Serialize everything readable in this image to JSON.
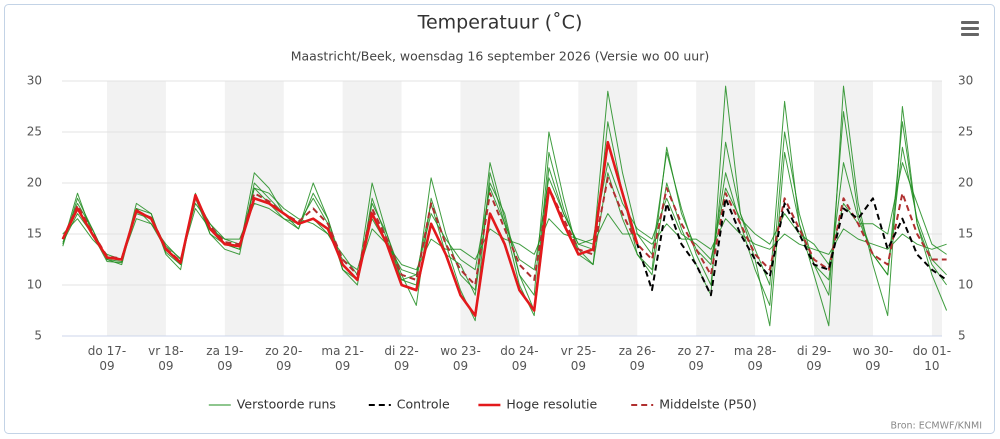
{
  "chart_data": {
    "type": "line",
    "title": "Temperatuur (˚C)",
    "subtitle": "Maastricht/Beek, woensdag 16 september 2026 (Versie wo 00 uur)",
    "credits": "Bron: ECMWF/KNMI",
    "categories": [
      null,
      null,
      null,
      "do 17-09",
      null,
      null,
      null,
      "vr 18-09",
      null,
      null,
      null,
      "za 19-09",
      null,
      null,
      null,
      "zo 20-09",
      null,
      null,
      null,
      "ma 21-09",
      null,
      null,
      null,
      "di 22-09",
      null,
      null,
      null,
      "wo 23-09",
      null,
      null,
      null,
      "do 24-09",
      null,
      null,
      null,
      "vr 25-09",
      null,
      null,
      null,
      "za 26-09",
      null,
      null,
      null,
      "zo 27-09",
      null,
      null,
      null,
      "ma 28-09",
      null,
      null,
      null,
      "di 29-09",
      null,
      null,
      null,
      "wo 30-09",
      null,
      null,
      null,
      "do 01-10",
      null
    ],
    "ylim": [
      5,
      30
    ],
    "yticks": [
      5,
      10,
      15,
      20,
      25,
      30
    ],
    "y2lim": [
      5,
      30
    ],
    "y2ticks": [
      5,
      10,
      15,
      20,
      25,
      30
    ],
    "grid": true,
    "legend": "bottom",
    "series": [
      {
        "name": "Verstoorde runs",
        "color": "#1e8c1e",
        "runs": [
          [
            14,
            19,
            15,
            12.3,
            12.2,
            18,
            17,
            13,
            11.5,
            19,
            15,
            13.5,
            13,
            20,
            18.5,
            17,
            16,
            18.5,
            16,
            11.5,
            10,
            18.5,
            14.5,
            10.5,
            10,
            20.5,
            15,
            11,
            9.5,
            22,
            16.5,
            11,
            9,
            25,
            18.5,
            13,
            12,
            26,
            19,
            13,
            11,
            20,
            15.5,
            12,
            9,
            29.5,
            17,
            13.5,
            10,
            28,
            16,
            12,
            9,
            27,
            17,
            13,
            11,
            26,
            16,
            12,
            10
          ],
          [
            15,
            16.5,
            14.5,
            13,
            12.5,
            16.5,
            16,
            14,
            12.5,
            17.5,
            15.5,
            14.5,
            14.5,
            18,
            17.5,
            16.5,
            16,
            16.5,
            15,
            13,
            11,
            15.5,
            14,
            12,
            11.5,
            14.5,
            13.5,
            13.5,
            12.5,
            15.5,
            14.5,
            14,
            13,
            16.5,
            15,
            14.5,
            14,
            17,
            15,
            15,
            14,
            16,
            14.5,
            14.5,
            13.5,
            16.5,
            15,
            14,
            13.5,
            15,
            14,
            13.5,
            13,
            15.5,
            14.5,
            14,
            13.5,
            15,
            14,
            13.5,
            14
          ],
          [
            13.8,
            18.5,
            15.5,
            12.5,
            12,
            17.5,
            16,
            13.5,
            12,
            18.5,
            16,
            14,
            13.5,
            19.5,
            18,
            16.5,
            15.5,
            20,
            16.5,
            12,
            10.5,
            20,
            15,
            11,
            8,
            18.5,
            14,
            9.5,
            6.5,
            21,
            16,
            10,
            7,
            21.5,
            17,
            14,
            13.5,
            29,
            21,
            15,
            13,
            23,
            17.5,
            13,
            10,
            24,
            17,
            12.5,
            6,
            23,
            16,
            11,
            6,
            29.5,
            18,
            12,
            7,
            27.5,
            16,
            11,
            7.5
          ],
          [
            14.2,
            17,
            15,
            12.6,
            12.5,
            17,
            16.5,
            13.8,
            12.6,
            18,
            16,
            14.5,
            14,
            19.5,
            19,
            17.5,
            16.5,
            16,
            15,
            12.5,
            11.5,
            16.5,
            14,
            11.5,
            11,
            17,
            14.5,
            12.5,
            11.5,
            19.5,
            16,
            12.5,
            11.5,
            20.5,
            17,
            14,
            14.5,
            22,
            18,
            15.5,
            14.5,
            18.5,
            15,
            14,
            12.5,
            19.5,
            16.5,
            15,
            14,
            17,
            15,
            14,
            12,
            18,
            16,
            16,
            15,
            22,
            18,
            14,
            13
          ],
          [
            14.5,
            18,
            15.5,
            12.5,
            12.3,
            17.5,
            17,
            13.2,
            12,
            18.5,
            15,
            14,
            13.5,
            21,
            19.5,
            17,
            15.5,
            19,
            16.5,
            11.5,
            10.5,
            18,
            15,
            10.5,
            11,
            18,
            13,
            12,
            9,
            20,
            17,
            11,
            7.5,
            23,
            17.5,
            13.5,
            12,
            21,
            16.5,
            13,
            11.5,
            23.5,
            17,
            13.5,
            12,
            21,
            16,
            11.5,
            8,
            25,
            17,
            12,
            10.5,
            22,
            16.5,
            13,
            11,
            23.5,
            16.5,
            12.5,
            11
          ]
        ]
      },
      {
        "name": "Controle",
        "color": "#000000",
        "dash": true,
        "values": [
          14.5,
          17.5,
          15,
          12.7,
          12.5,
          17.3,
          16.5,
          13.5,
          12.2,
          18.8,
          15.5,
          14,
          13.8,
          18.5,
          18,
          17,
          16,
          16.5,
          15.5,
          12,
          10.5,
          17,
          14,
          10,
          9.5,
          16,
          13,
          9,
          7,
          17,
          14,
          9.5,
          7.5,
          19.5,
          16,
          13,
          13.5,
          24,
          19,
          14,
          9.5,
          18,
          14,
          12,
          9,
          18.5,
          15,
          12.5,
          10.8,
          18,
          15,
          12,
          11.5,
          17.5,
          16.5,
          18.5,
          13.5,
          16.5,
          13,
          11.5,
          10.5
        ]
      },
      {
        "name": "Hoge resolutie",
        "color": "#e3191c",
        "values": [
          14.5,
          17.5,
          15,
          12.7,
          12.5,
          17.3,
          16.5,
          13.5,
          12.2,
          18.8,
          15.5,
          14,
          13.8,
          18.5,
          18,
          17,
          16,
          16.5,
          15.5,
          12,
          10.5,
          17,
          14,
          10,
          9.5,
          16,
          13,
          9,
          7,
          17,
          14,
          9.5,
          7.5,
          19.5,
          16,
          13,
          13.5,
          24,
          19,
          14,
          null,
          null,
          null,
          null,
          null,
          null,
          null,
          null,
          null,
          null,
          null,
          null,
          null,
          null,
          null,
          null,
          null,
          null,
          null,
          null,
          null
        ]
      },
      {
        "name": "Middelste (P50)",
        "color": "#b03030",
        "dash": true,
        "values": [
          14.5,
          17.8,
          15.2,
          12.8,
          12.6,
          17.2,
          16.6,
          13.6,
          12.3,
          18.6,
          15.8,
          14.2,
          14,
          19,
          18.2,
          17,
          16.2,
          17.5,
          16,
          12.5,
          11,
          17.5,
          14.5,
          11,
          10.5,
          18,
          14,
          11.5,
          10,
          19,
          15.5,
          12,
          10.5,
          19.5,
          16.5,
          13.5,
          13,
          20.5,
          17,
          14,
          12.5,
          19.5,
          16,
          13.5,
          11,
          19,
          16,
          13,
          11.5,
          18.5,
          15.5,
          12.5,
          11.5,
          18.5,
          16,
          13,
          12,
          19,
          15,
          12.5,
          12.5
        ]
      }
    ]
  }
}
